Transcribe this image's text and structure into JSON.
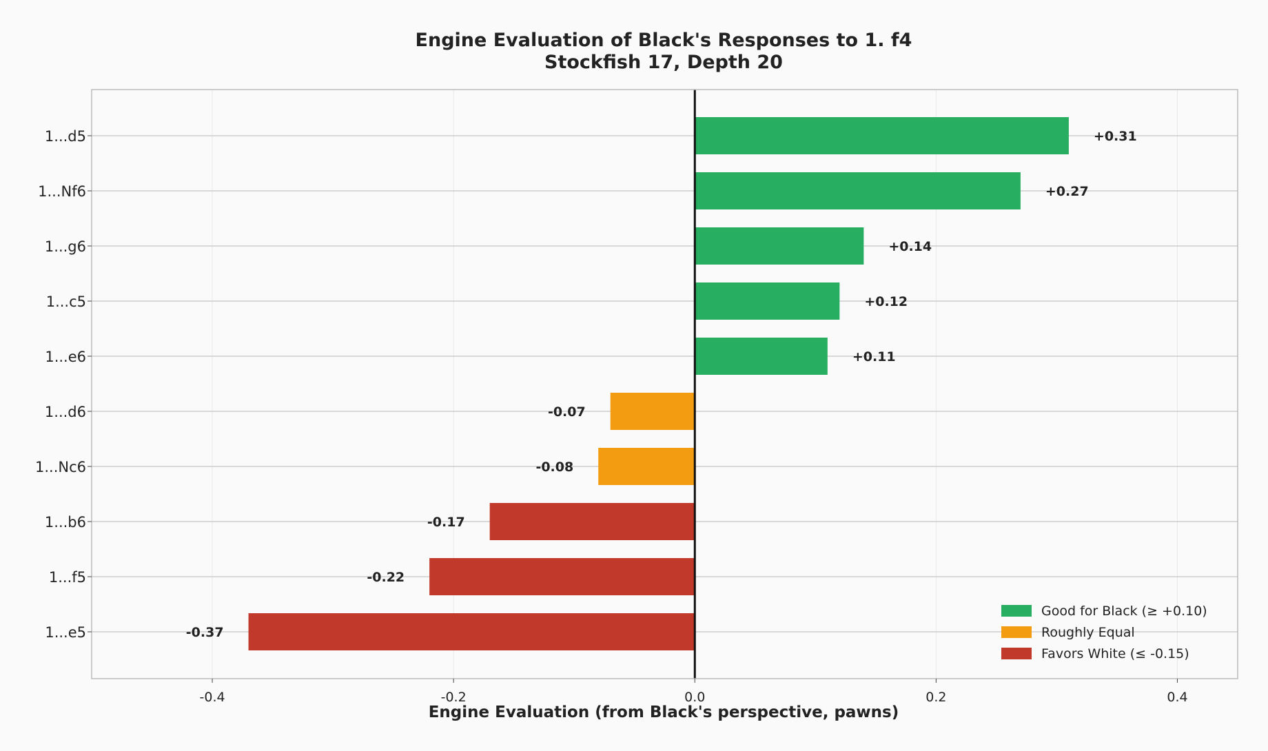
{
  "chart_data": {
    "type": "bar",
    "orientation": "horizontal",
    "title": "Engine Evaluation of Black's Responses to 1. f4",
    "subtitle": "Stockfish 17, Depth 20",
    "xlabel": "Engine Evaluation (from Black's perspective, pawns)",
    "ylabel": "",
    "xlim": [
      -0.5,
      0.45
    ],
    "xticks": [
      -0.4,
      -0.2,
      0.0,
      0.2,
      0.4
    ],
    "xtick_labels": [
      "-0.4",
      "-0.2",
      "0.0",
      "0.2",
      "0.4"
    ],
    "grid": true,
    "legend_position": "bottom-right",
    "categories": [
      "1...d5",
      "1...Nf6",
      "1...g6",
      "1...c5",
      "1...e6",
      "1...d6",
      "1...Nc6",
      "1...b6",
      "1...f5",
      "1...e5"
    ],
    "values": [
      0.31,
      0.27,
      0.14,
      0.12,
      0.11,
      -0.07,
      -0.08,
      -0.17,
      -0.22,
      -0.37
    ],
    "value_labels": [
      "+0.31",
      "+0.27",
      "+0.14",
      "+0.12",
      "+0.11",
      "-0.07",
      "-0.08",
      "-0.17",
      "-0.22",
      "-0.37"
    ],
    "groups": [
      "good",
      "good",
      "good",
      "good",
      "good",
      "equal",
      "equal",
      "white",
      "white",
      "white"
    ],
    "legend": [
      {
        "key": "good",
        "label": "Good for Black (≥ +0.10)",
        "color": "#27ae60"
      },
      {
        "key": "equal",
        "label": "Roughly Equal",
        "color": "#f39c12"
      },
      {
        "key": "white",
        "label": "Favors White (≤ -0.15)",
        "color": "#c0392b"
      }
    ]
  }
}
